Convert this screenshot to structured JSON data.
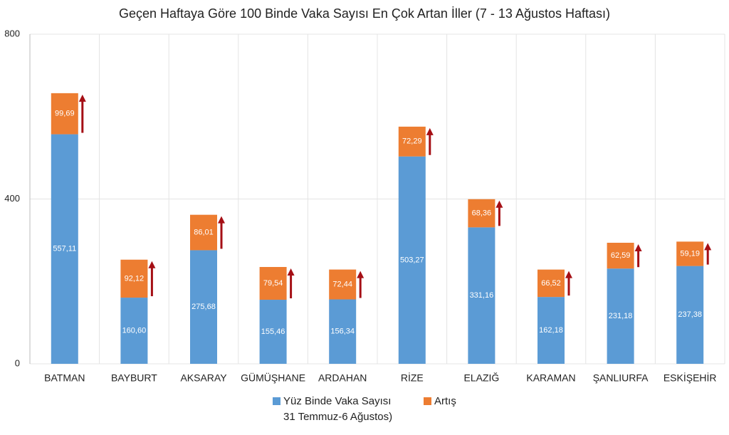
{
  "chart_data": {
    "type": "stacked-bar",
    "title": "Geçen Haftaya Göre 100 Binde Vaka Sayısı En Çok Artan İller (7 - 13 Ağustos Haftası)",
    "categories": [
      "BATMAN",
      "BAYBURT",
      "AKSARAY",
      "GÜMÜŞHANE",
      "ARDAHAN",
      "RİZE",
      "ELAZIĞ",
      "KARAMAN",
      "ŞANLIURFA",
      "ESKİŞEHİR"
    ],
    "series": [
      {
        "name": "Yüz Binde Vaka Sayısı\n31 Temmuz-6 Ağustos)",
        "color": "#5b9bd5",
        "values": [
          557.11,
          160.6,
          275.68,
          155.46,
          156.34,
          503.27,
          331.16,
          162.18,
          231.18,
          237.38
        ],
        "value_labels": [
          "557,11",
          "160,60",
          "275,68",
          "155,46",
          "156,34",
          "503,27",
          "331,16",
          "162,18",
          "231,18",
          "237,38"
        ]
      },
      {
        "name": "Artış",
        "color": "#ed7d31",
        "values": [
          99.69,
          92.12,
          86.01,
          79.54,
          72.44,
          72.29,
          68.36,
          66.52,
          62.59,
          59.19
        ],
        "value_labels": [
          "99,69",
          "92,12",
          "86,01",
          "79,54",
          "72,44",
          "72,29",
          "68,36",
          "66,52",
          "62,59",
          "59,19"
        ]
      }
    ],
    "ylim": [
      0,
      800
    ],
    "yticks": [
      0,
      400,
      800
    ],
    "grid": true
  }
}
